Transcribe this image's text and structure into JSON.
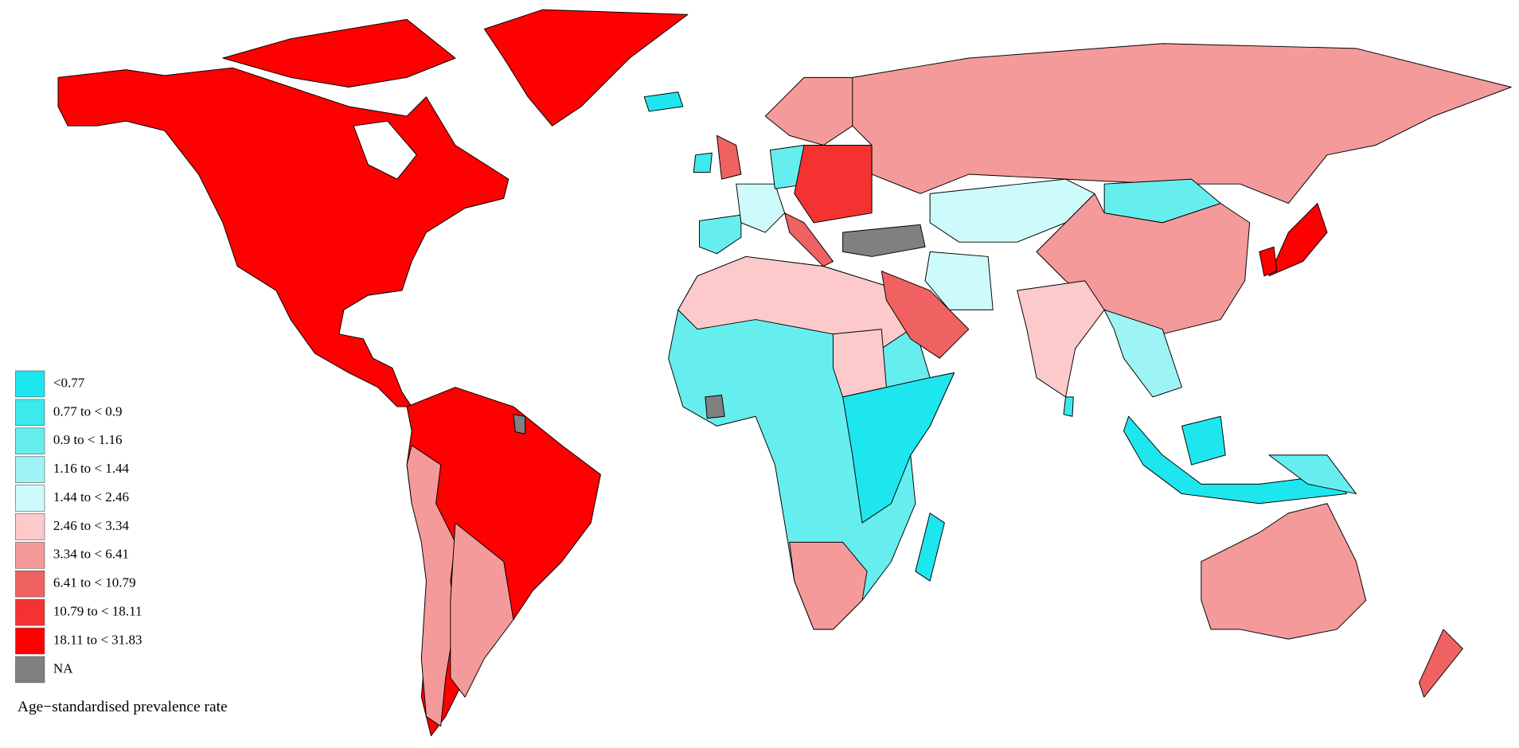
{
  "legend": {
    "title": "Age−standardised prevalence rate",
    "items": [
      {
        "label": "<0.77",
        "color": "#1ee6ee"
      },
      {
        "label": "0.77 to < 0.9",
        "color": "#3ce9ec"
      },
      {
        "label": "0.9 to < 1.16",
        "color": "#66eeef"
      },
      {
        "label": "1.16 to < 1.44",
        "color": "#9ef4f4"
      },
      {
        "label": "1.44  to  < 2.46",
        "color": "#cdfafa"
      },
      {
        "label": "2.46  to  < 3.34",
        "color": "#fccaca"
      },
      {
        "label": "3.34 to < 6.41",
        "color": "#f59a9a"
      },
      {
        "label": "6.41 to < 10.79",
        "color": "#f06262"
      },
      {
        "label": "10.79 to < 18.11",
        "color": "#f43232"
      },
      {
        "label": "18.11 to < 31.83",
        "color": "#ff0000"
      },
      {
        "label": "NA",
        "color": "#808080"
      }
    ]
  }
}
